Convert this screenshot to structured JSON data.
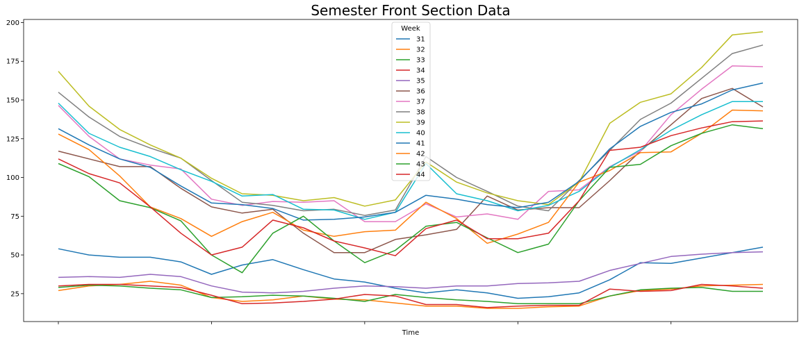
{
  "chart_data": {
    "type": "line",
    "title": "Semester Front Section Data",
    "xlabel": "Time",
    "ylabel": "",
    "ylim": [
      7,
      202
    ],
    "yticks": [
      25,
      50,
      75,
      100,
      125,
      150,
      175,
      200
    ],
    "xtick_count": 5,
    "grid": false,
    "legend": {
      "title": "Week",
      "placement": "top-center"
    },
    "series": [
      {
        "name": "31",
        "color": "#1f77b4",
        "values": [
          54,
          50,
          48.5,
          48.5,
          45.5,
          37.5,
          43.5,
          47,
          40.5,
          34.5,
          32.5,
          28.5,
          25.5,
          27.5,
          25.5,
          22,
          23,
          25.5,
          34,
          45,
          44.5,
          48,
          51.5,
          55
        ]
      },
      {
        "name": "32",
        "color": "#ff7f0e",
        "values": [
          27,
          30,
          31,
          33,
          30.5,
          22.5,
          20,
          21,
          23.5,
          21.5,
          21,
          19,
          17,
          17,
          15.5,
          15.5,
          16.5,
          17,
          23.5,
          27,
          28,
          30,
          30.5,
          31
        ]
      },
      {
        "name": "33",
        "color": "#2ca02c",
        "values": [
          29,
          30.5,
          30,
          28.5,
          27.5,
          22.5,
          23,
          24,
          23.5,
          22,
          20,
          24.5,
          22.5,
          21,
          20,
          18.5,
          18.5,
          18.5,
          23.5,
          27.5,
          28.5,
          29,
          26.5,
          26.5
        ]
      },
      {
        "name": "34",
        "color": "#d62728",
        "values": [
          30,
          31,
          31,
          30,
          29,
          24,
          18.5,
          19,
          20,
          21.5,
          24.5,
          23.5,
          18,
          18,
          16,
          17,
          17.5,
          17.5,
          28,
          26.5,
          27,
          31,
          30,
          28.5
        ]
      },
      {
        "name": "35",
        "color": "#9467bd",
        "values": [
          35.5,
          36,
          35.5,
          37.5,
          36,
          30,
          26,
          25.5,
          26.5,
          28.5,
          30,
          29.5,
          28.5,
          30,
          30,
          31.5,
          32,
          33,
          40,
          44.5,
          49,
          50.5,
          51.5,
          52
        ]
      },
      {
        "name": "36",
        "color": "#8c564b",
        "values": [
          117,
          112,
          107,
          107,
          93,
          81,
          77,
          79.5,
          64,
          51.5,
          51.5,
          60,
          63,
          66.5,
          88,
          79,
          80.5,
          80.5,
          98,
          117,
          134,
          151,
          157.5,
          145.5
        ]
      },
      {
        "name": "37",
        "color": "#e377c2",
        "values": [
          146.5,
          126.5,
          112,
          108,
          105.5,
          86,
          82,
          84.5,
          84,
          85,
          71.5,
          71.5,
          83,
          74.5,
          76.5,
          73,
          91,
          92,
          107,
          117,
          140.5,
          157,
          172,
          171.5
        ]
      },
      {
        "name": "38",
        "color": "#7f7f7f",
        "values": [
          155,
          139,
          126.5,
          119,
          112.5,
          98,
          84,
          82,
          78.5,
          79.5,
          75.5,
          79,
          113.5,
          100,
          91,
          81.5,
          78.5,
          98,
          117.5,
          137.5,
          148,
          164,
          180,
          185.5
        ]
      },
      {
        "name": "39",
        "color": "#bcbd22",
        "values": [
          168.5,
          146,
          131,
          121,
          112.5,
          99.5,
          89.5,
          88.5,
          85,
          87,
          81.5,
          85.5,
          110,
          97,
          90,
          85,
          82.5,
          97,
          135,
          148.5,
          154,
          171,
          192,
          194
        ]
      },
      {
        "name": "40",
        "color": "#17becf",
        "values": [
          148,
          128.5,
          119.5,
          113.5,
          105,
          97.5,
          88,
          89,
          79.5,
          79,
          73,
          77.5,
          109,
          89.5,
          85,
          78.5,
          82,
          91,
          106.5,
          118,
          130.5,
          140.5,
          149,
          149
        ]
      },
      {
        "name": "41",
        "color": "#1f77b4",
        "values": [
          131.5,
          121,
          112,
          106.5,
          94.5,
          83.5,
          82.5,
          80,
          72.5,
          73,
          74.5,
          77.5,
          88.5,
          86,
          82.5,
          80.5,
          84,
          97.5,
          118.5,
          133,
          142,
          147.5,
          156.5,
          161
        ]
      },
      {
        "name": "42",
        "color": "#ff7f0e",
        "values": [
          128,
          118,
          101,
          81,
          73.5,
          62,
          71.5,
          77.5,
          66,
          62,
          65,
          66,
          84,
          73.5,
          57.5,
          63.5,
          71,
          97,
          104.5,
          116,
          116.5,
          128.5,
          143.5,
          143
        ]
      },
      {
        "name": "43",
        "color": "#2ca02c",
        "values": [
          109,
          100.5,
          85,
          80.5,
          72,
          50,
          38.5,
          64,
          75,
          59,
          45,
          53,
          68.5,
          71,
          61,
          51.5,
          57,
          85,
          106.5,
          108.5,
          120.5,
          128.5,
          134,
          131.5
        ]
      },
      {
        "name": "44",
        "color": "#d62728",
        "values": [
          112,
          102.5,
          96.5,
          81,
          64,
          50,
          55,
          72.5,
          67.5,
          59,
          54.5,
          49.5,
          67,
          72.5,
          60.5,
          60.5,
          64,
          85,
          117.5,
          119.5,
          127,
          132,
          136,
          136.5
        ]
      }
    ]
  }
}
